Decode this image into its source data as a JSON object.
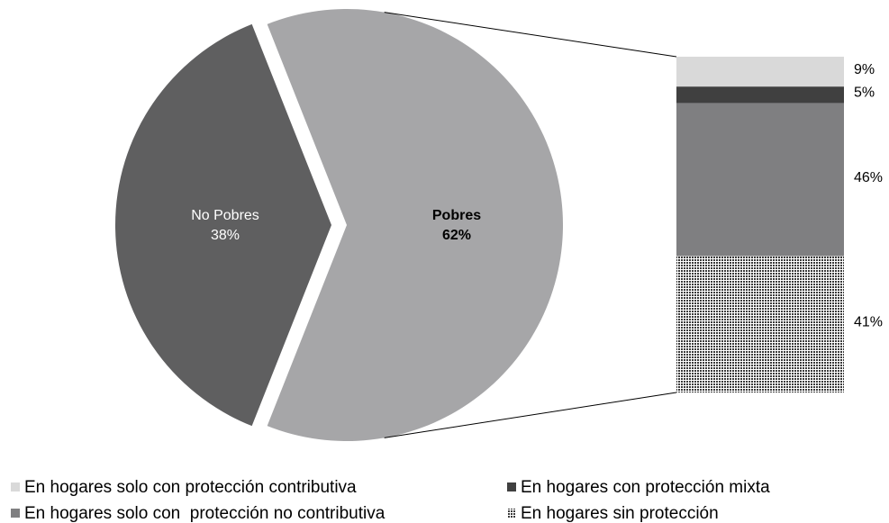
{
  "chart_data": {
    "type": "pie_of_bar",
    "pie": {
      "categories": [
        "No Pobres",
        "Pobres"
      ],
      "values": [
        38,
        62
      ],
      "value_labels": [
        "38%",
        "62%"
      ],
      "colors": [
        "#5f5f60",
        "#a6a6a8"
      ]
    },
    "bar": {
      "series": [
        {
          "name": "En hogares solo con protección contributiva",
          "color": "#d9d9d9",
          "values": [
            9
          ],
          "value_labels": [
            "9%"
          ]
        },
        {
          "name": "En hogares con protección mixta",
          "color": "#404040",
          "values": [
            5
          ],
          "value_labels": [
            "5%"
          ]
        },
        {
          "name": "En hogares solo con  protección no contributiva",
          "color": "#7f7f81",
          "values": [
            46
          ],
          "value_labels": [
            "46%"
          ]
        },
        {
          "name": "En hogares sin protección",
          "color": "#3a3a3a",
          "pattern": "dots",
          "values": [
            41
          ],
          "value_labels": [
            "41%"
          ]
        }
      ]
    }
  }
}
